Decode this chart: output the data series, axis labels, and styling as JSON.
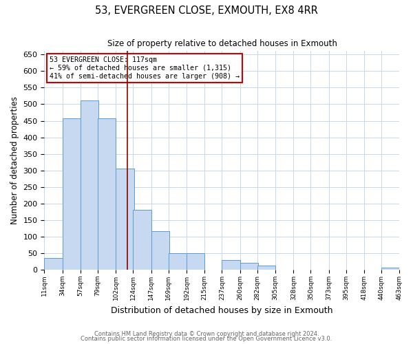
{
  "title": "53, EVERGREEN CLOSE, EXMOUTH, EX8 4RR",
  "subtitle": "Size of property relative to detached houses in Exmouth",
  "xlabel": "Distribution of detached houses by size in Exmouth",
  "ylabel": "Number of detached properties",
  "bar_left_edges": [
    11,
    34,
    57,
    79,
    102,
    124,
    147,
    169,
    192,
    215,
    237,
    260,
    282,
    305,
    328,
    350,
    373,
    395,
    418,
    440
  ],
  "bar_heights": [
    35,
    458,
    512,
    457,
    305,
    181,
    117,
    50,
    50,
    0,
    29,
    22,
    12,
    0,
    0,
    0,
    0,
    0,
    0,
    7
  ],
  "bin_width": 23,
  "bar_color": "#c6d9f0",
  "bar_edge_color": "#5b9bd5",
  "property_line_x": 117,
  "property_line_color": "#8b0000",
  "annotation_line1": "53 EVERGREEN CLOSE: 117sqm",
  "annotation_line2": "← 59% of detached houses are smaller (1,315)",
  "annotation_line3": "41% of semi-detached houses are larger (908) →",
  "annotation_box_color": "#ffffff",
  "annotation_box_edge_color": "#cc0000",
  "yticks": [
    0,
    50,
    100,
    150,
    200,
    250,
    300,
    350,
    400,
    450,
    500,
    550,
    600,
    650
  ],
  "xtick_labels": [
    "11sqm",
    "34sqm",
    "57sqm",
    "79sqm",
    "102sqm",
    "124sqm",
    "147sqm",
    "169sqm",
    "192sqm",
    "215sqm",
    "237sqm",
    "260sqm",
    "282sqm",
    "305sqm",
    "328sqm",
    "350sqm",
    "373sqm",
    "395sqm",
    "418sqm",
    "440sqm",
    "463sqm"
  ],
  "ylim": [
    0,
    660
  ],
  "xlim": [
    11,
    463
  ],
  "footer1": "Contains HM Land Registry data © Crown copyright and database right 2024.",
  "footer2": "Contains public sector information licensed under the Open Government Licence v3.0.",
  "background_color": "#ffffff",
  "grid_color": "#c8d8e8"
}
